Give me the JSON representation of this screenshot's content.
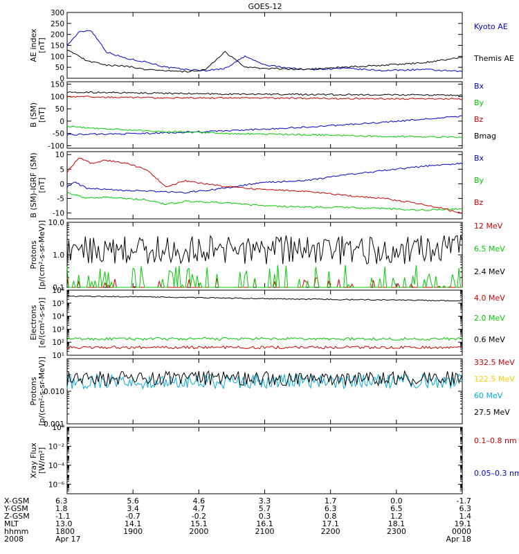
{
  "chart_data": {
    "type": "line",
    "title": "GOES-12",
    "x_range": [
      "2008 Apr 17 18:00",
      "2008 Apr 18 00:00"
    ],
    "x_ticks": [
      "1800",
      "1900",
      "2000",
      "2100",
      "2200",
      "2300",
      "0000"
    ],
    "ephemeris": {
      "labels": [
        "X-GSM",
        "Y-GSM",
        "Z-GSM",
        "MLT",
        "hhmm",
        "2008"
      ],
      "rows": [
        [
          "6.3",
          "5.6",
          "4.6",
          "3.3",
          "1.7",
          "0.0",
          "-1.7"
        ],
        [
          "1.8",
          "3.4",
          "4.7",
          "5.7",
          "6.3",
          "6.5",
          "6.3"
        ],
        [
          "-1.1",
          "-0.7",
          "-0.2",
          "0.3",
          "0.8",
          "1.2",
          "1.4"
        ],
        [
          "13.0",
          "14.1",
          "15.1",
          "16.1",
          "17.1",
          "18.1",
          "19.1"
        ],
        [
          "1800",
          "1900",
          "2000",
          "2100",
          "2200",
          "2300",
          "0000"
        ],
        [
          "Apr 17",
          "",
          "",
          "",
          "",
          "",
          "Apr 18"
        ]
      ]
    },
    "panels": [
      {
        "id": "ae",
        "ylabel": [
          "AE index",
          "[nT]"
        ],
        "scale": "linear",
        "ylim": [
          0,
          300
        ],
        "yticks": [
          "300",
          "250",
          "200",
          "150",
          "100",
          "50",
          "0"
        ],
        "tick_values": [
          300,
          250,
          200,
          150,
          100,
          50,
          0
        ],
        "series": [
          {
            "name": "Kyoto AE",
            "color": "#0000cc",
            "x": [
              0,
              0.03,
              0.06,
              0.1,
              0.15,
              0.2,
              0.25,
              0.3,
              0.35,
              0.4,
              0.45,
              0.5,
              0.6,
              0.7,
              0.8,
              0.9,
              1.0
            ],
            "y": [
              150,
              210,
              220,
              120,
              90,
              75,
              50,
              40,
              35,
              45,
              100,
              60,
              40,
              45,
              35,
              40,
              30
            ]
          },
          {
            "name": "Themis AE",
            "color": "#000000",
            "x": [
              0,
              0.05,
              0.1,
              0.15,
              0.2,
              0.25,
              0.3,
              0.35,
              0.4,
              0.45,
              0.5,
              0.6,
              0.7,
              0.8,
              0.9,
              1.0
            ],
            "y": [
              130,
              80,
              60,
              55,
              40,
              35,
              30,
              40,
              120,
              50,
              45,
              40,
              50,
              60,
              70,
              95
            ]
          }
        ]
      },
      {
        "id": "b-sm",
        "ylabel": [
          "B (SM)",
          "[nT]"
        ],
        "scale": "linear",
        "ylim": [
          -110,
          160
        ],
        "yticks": [
          "150",
          "100",
          "50",
          "0",
          "-50",
          "-100"
        ],
        "tick_values": [
          150,
          100,
          50,
          0,
          -50,
          -100
        ],
        "series": [
          {
            "name": "Bx",
            "color": "#0000cc",
            "x": [
              0,
              0.2,
              0.4,
              0.6,
              0.8,
              1.0
            ],
            "y": [
              -55,
              -50,
              -40,
              -25,
              -5,
              20
            ]
          },
          {
            "name": "By",
            "color": "#00cc00",
            "x": [
              0,
              0.2,
              0.4,
              0.6,
              0.8,
              1.0
            ],
            "y": [
              -22,
              -40,
              -50,
              -55,
              -62,
              -65
            ]
          },
          {
            "name": "Bz",
            "color": "#cc0000",
            "x": [
              0,
              0.2,
              0.4,
              0.6,
              0.8,
              1.0
            ],
            "y": [
              100,
              95,
              94,
              93,
              91,
              90
            ]
          },
          {
            "name": "Bmag",
            "color": "#000000",
            "x": [
              0,
              0.2,
              0.4,
              0.6,
              0.8,
              1.0
            ],
            "y": [
              118,
              114,
              110,
              108,
              107,
              106
            ]
          }
        ]
      },
      {
        "id": "b-igrf",
        "ylabel": [
          "B (SM)-IGRF (SM)",
          "[nT]"
        ],
        "scale": "linear",
        "ylim": [
          -12,
          11
        ],
        "yticks": [
          "10",
          "5",
          "0",
          "-5",
          "-10"
        ],
        "tick_values": [
          10,
          5,
          0,
          -5,
          -10
        ],
        "series": [
          {
            "name": "Bx",
            "color": "#0000cc",
            "x": [
              0,
              0.02,
              0.05,
              0.1,
              0.2,
              0.3,
              0.4,
              0.5,
              0.6,
              0.7,
              0.8,
              0.9,
              1.0
            ],
            "y": [
              -1,
              0.5,
              -1.5,
              -2,
              -2.5,
              -3,
              -1.5,
              0.5,
              1,
              3,
              4.5,
              6,
              7
            ]
          },
          {
            "name": "By",
            "color": "#00cc00",
            "x": [
              0,
              0.05,
              0.1,
              0.2,
              0.25,
              0.3,
              0.4,
              0.5,
              0.6,
              0.7,
              0.8,
              0.9,
              1.0
            ],
            "y": [
              -3,
              -5,
              -4.5,
              -5.5,
              -7,
              -6,
              -6.5,
              -7.5,
              -8,
              -8,
              -8.5,
              -9,
              -8.5
            ]
          },
          {
            "name": "Bz",
            "color": "#cc0000",
            "x": [
              0,
              0.03,
              0.06,
              0.1,
              0.15,
              0.2,
              0.25,
              0.3,
              0.35,
              0.4,
              0.5,
              0.6,
              0.7,
              0.8,
              0.9,
              1.0
            ],
            "y": [
              4,
              9,
              7,
              8,
              7,
              5,
              -1,
              1,
              0,
              -1,
              -2,
              -2.5,
              -4,
              -5,
              -7,
              -10
            ]
          }
        ]
      },
      {
        "id": "protons-low",
        "ylabel": [
          "Protons",
          "[p/(cm²-s-sr-MeV)]"
        ],
        "scale": "log",
        "ylim": [
          0.1,
          10
        ],
        "yticks": [
          "10.0",
          "1.0",
          "0.1"
        ],
        "tick_values": [
          10,
          1,
          0.1
        ],
        "series": [
          {
            "name": "12 MeV",
            "color": "#cc0000",
            "style": "floor spikes near 0.1–0.2"
          },
          {
            "name": "6.5 MeV",
            "color": "#00cc00",
            "style": "spikes near 0.1–0.5"
          },
          {
            "name": "2.4 MeV",
            "color": "#000000",
            "style": "noisy around 0.5–4"
          }
        ]
      },
      {
        "id": "electrons",
        "ylabel": [
          "Electrons",
          "[e/(cm²-s-sr)]"
        ],
        "scale": "log",
        "ylim": [
          10,
          1000000
        ],
        "yticks": [
          "10⁶",
          "10⁵",
          "10⁴",
          "10³",
          "10²",
          "10¹"
        ],
        "tick_values": [
          1000000,
          100000,
          10000,
          1000,
          100,
          10
        ],
        "series": [
          {
            "name": "4.0 MeV",
            "color": "#cc0000",
            "level": 40
          },
          {
            "name": "2.0 MeV",
            "color": "#00cc00",
            "level": 180
          },
          {
            "name": "0.6 MeV",
            "color": "#000000",
            "x": [
              0,
              0.5,
              1.0
            ],
            "y": [
              350000,
              220000,
              150000
            ]
          }
        ]
      },
      {
        "id": "protons-high",
        "ylabel": [
          "Protons",
          "[p/(cm²-s-sr-MeV)]"
        ],
        "scale": "log",
        "ylim": [
          0.001,
          0.1
        ],
        "yticks": [
          "0.010",
          "0.001"
        ],
        "tick_values": [
          0.01,
          0.001
        ],
        "series": [
          {
            "name": "332.5 MeV",
            "color": "#cc0000"
          },
          {
            "name": "122.5 MeV",
            "color": "#ffcc00"
          },
          {
            "name": "60 MeV",
            "color": "#00aadd",
            "level": 0.02
          },
          {
            "name": "27.5 MeV",
            "color": "#000000",
            "level": 0.025
          }
        ]
      },
      {
        "id": "xray",
        "ylabel": [
          "Xray Flux",
          "[W/m²]"
        ],
        "scale": "log",
        "ylim": [
          1e-07,
          1
        ],
        "yticks": [
          "10⁰",
          "10⁻²",
          "10⁻⁴",
          "10⁻⁶"
        ],
        "tick_values": [
          1,
          0.01,
          0.0001,
          1e-06
        ],
        "series": [
          {
            "name": "0.1–0.8 nm",
            "color": "#cc0000"
          },
          {
            "name": "0.05–0.3 nm",
            "color": "#0000cc"
          }
        ]
      }
    ]
  }
}
